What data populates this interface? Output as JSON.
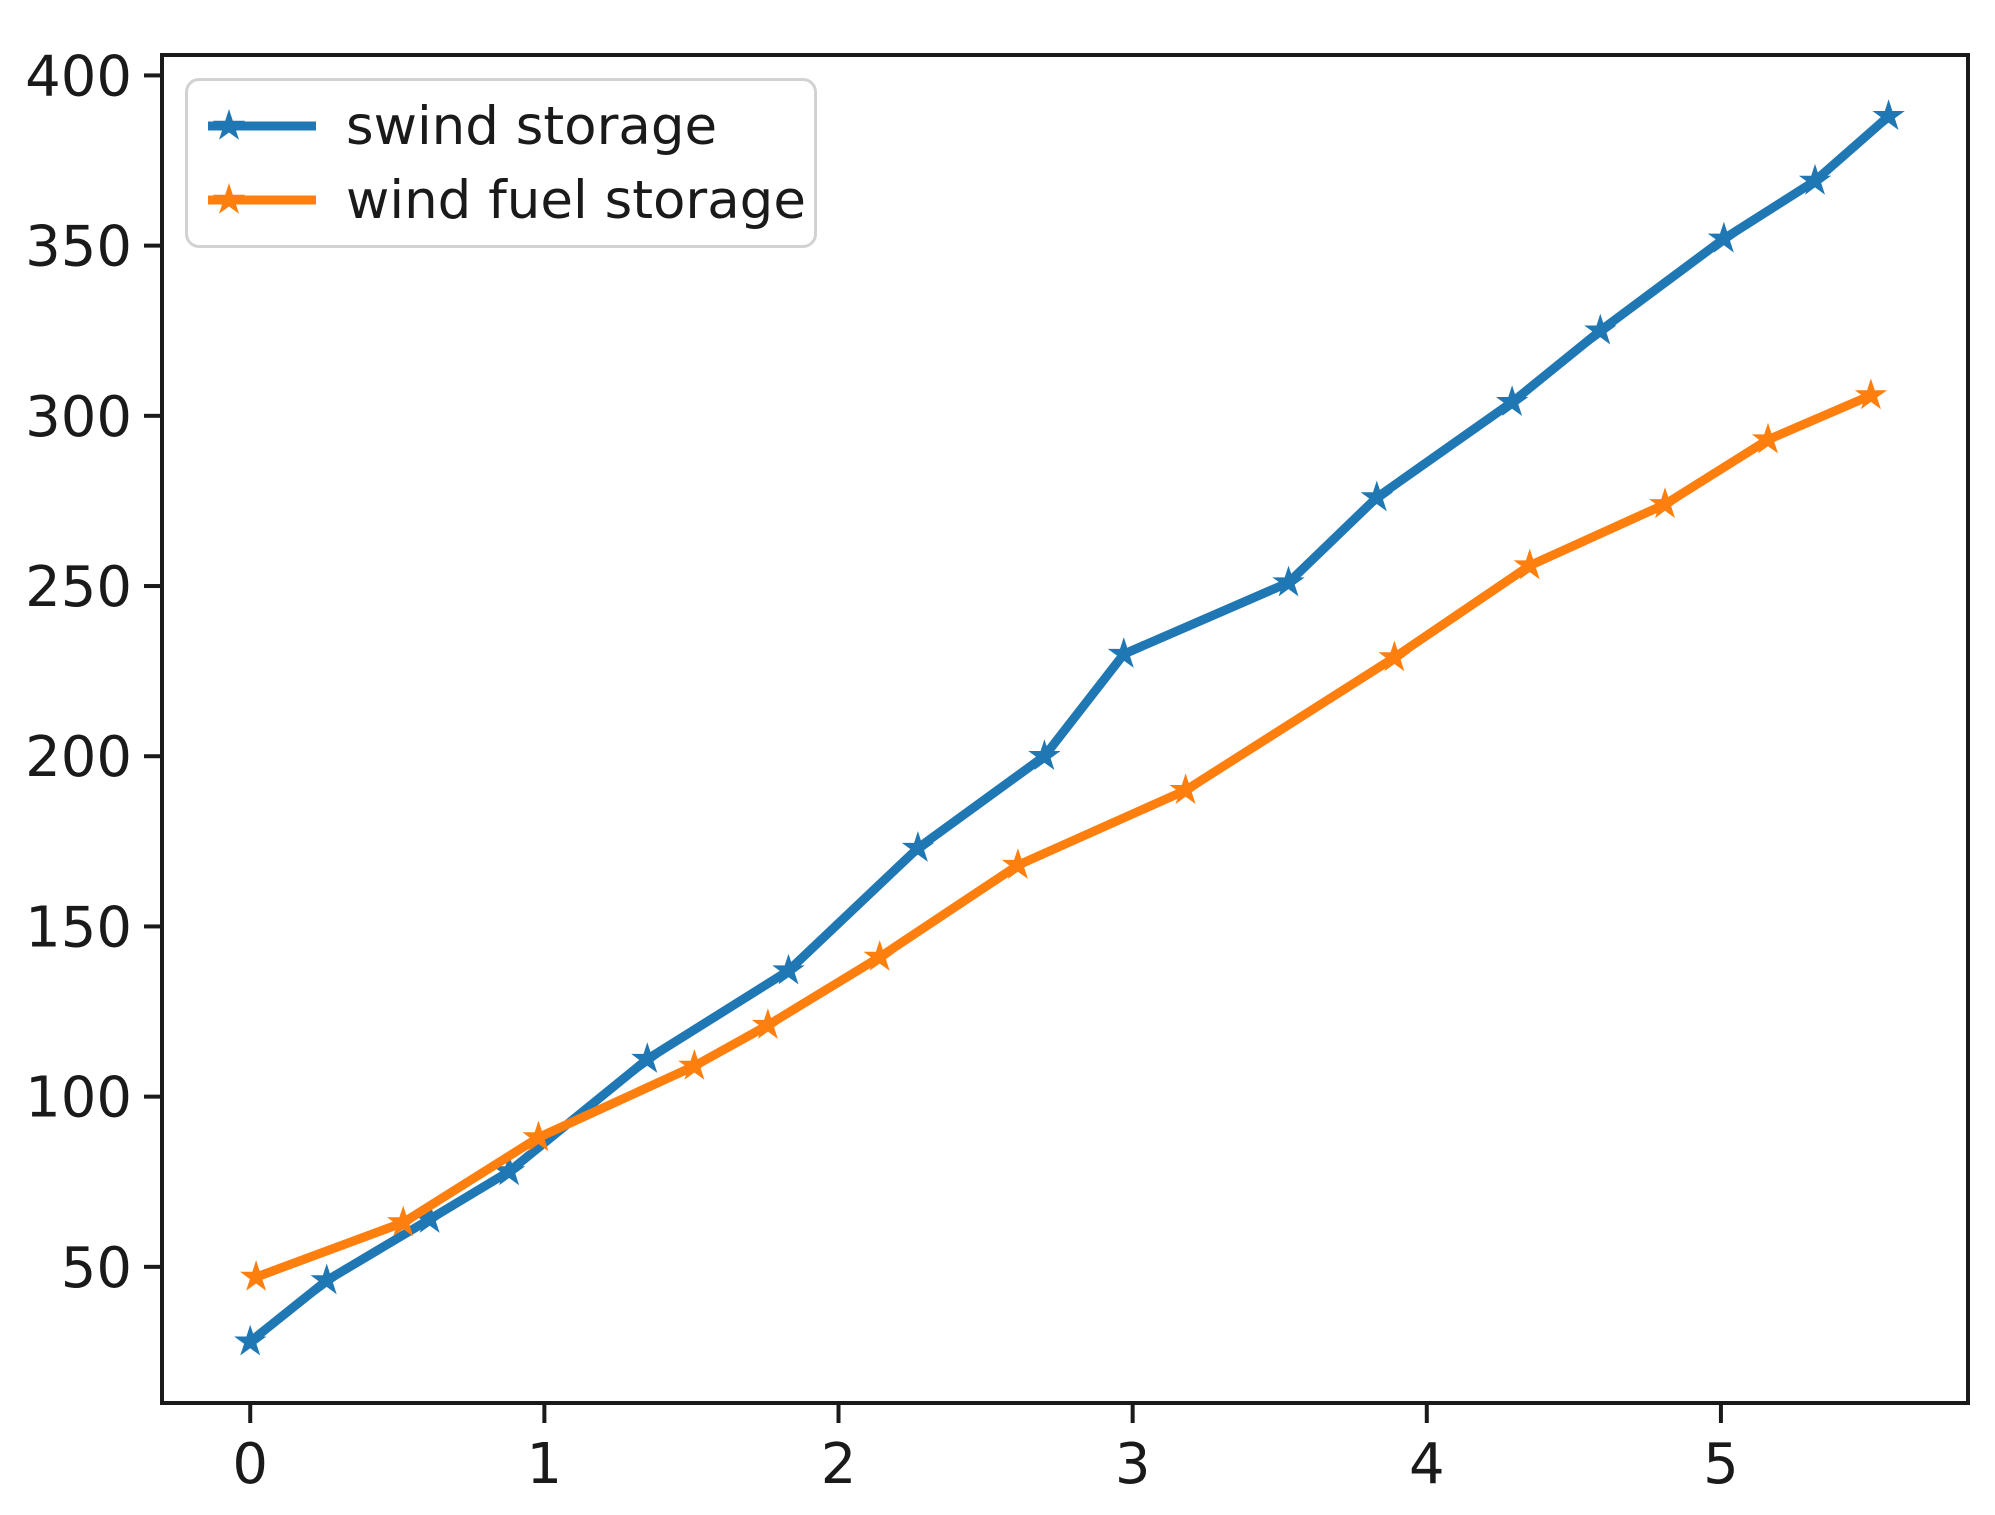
{
  "chart_data": {
    "type": "line",
    "title": "",
    "xlabel": "",
    "ylabel": "",
    "xlim": [
      -0.3,
      5.84
    ],
    "ylim": [
      10,
      406
    ],
    "x_ticks": [
      0,
      1,
      2,
      3,
      4,
      5
    ],
    "y_ticks": [
      50,
      100,
      150,
      200,
      250,
      300,
      350,
      400
    ],
    "grid": false,
    "legend_position": "upper-left",
    "marker": "star",
    "axis_color": "#1a1a1a",
    "tick_label_color": "#1a1a1a",
    "background_color": "#ffffff",
    "series": [
      {
        "name": "swind storage",
        "color": "#1f77b4",
        "x": [
          0,
          0.26,
          0.61,
          0.88,
          1.35,
          1.83,
          2.27,
          2.7,
          2.97,
          3.53,
          3.83,
          4.29,
          4.59,
          5.01,
          5.32,
          5.57
        ],
        "y": [
          28,
          46,
          64,
          78,
          111,
          137,
          173,
          200,
          230,
          251,
          276,
          304,
          325,
          352,
          369,
          388
        ]
      },
      {
        "name": "wind fuel storage",
        "color": "#ff7f0e",
        "x": [
          0.02,
          0.52,
          0.98,
          1.51,
          1.76,
          2.14,
          2.61,
          3.18,
          3.89,
          4.35,
          4.81,
          5.16,
          5.51
        ],
        "y": [
          47,
          63,
          88,
          109,
          121,
          141,
          168,
          190,
          229,
          256,
          274,
          293,
          306
        ]
      }
    ]
  }
}
